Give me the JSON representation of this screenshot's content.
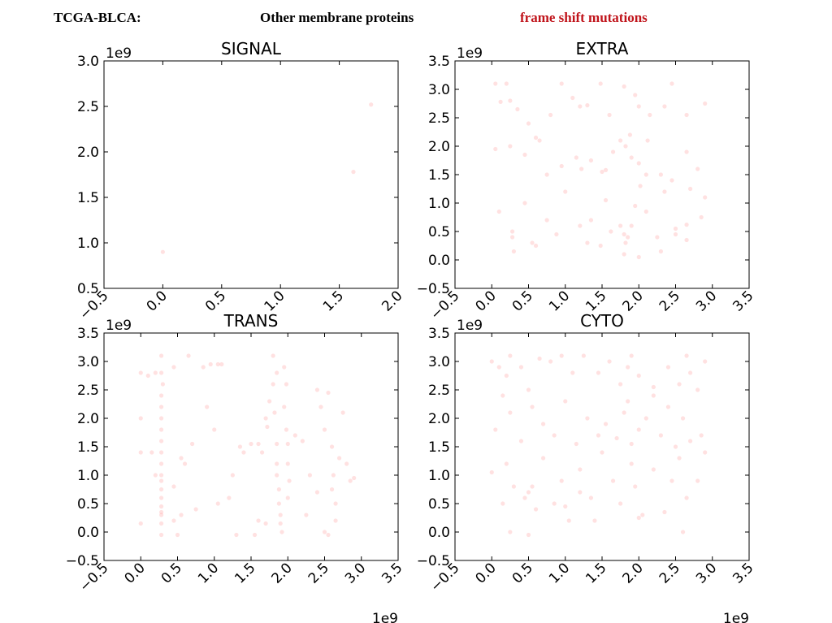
{
  "header": {
    "dataset": "TCGA-BLCA:",
    "category": "Other membrane proteins",
    "mutation_type": "frame shift mutations",
    "mutation_color": "#c0141b"
  },
  "point_color": "#ff9a9a",
  "chart_data": [
    {
      "type": "scatter",
      "title": "SIGNAL",
      "x_offset_label": "",
      "y_offset_label": "1e9",
      "xlim": [
        -0.5,
        2.0
      ],
      "ylim": [
        0.5,
        3.0
      ],
      "xticks": [
        "−0.5",
        "0.0",
        "0.5",
        "1.0",
        "1.5",
        "2.0"
      ],
      "yticks": [
        "0.5",
        "1.0",
        "1.5",
        "2.0",
        "2.5",
        "3.0"
      ],
      "points": [
        [
          0.0,
          0.9
        ],
        [
          1.62,
          1.78
        ],
        [
          1.77,
          2.52
        ]
      ]
    },
    {
      "type": "scatter",
      "title": "EXTRA",
      "x_offset_label": "",
      "y_offset_label": "1e9",
      "xlim": [
        -0.5,
        3.5
      ],
      "ylim": [
        -0.5,
        3.5
      ],
      "xticks": [
        "−0.5",
        "0.0",
        "0.5",
        "1.0",
        "1.5",
        "2.0",
        "2.5",
        "3.0",
        "3.5"
      ],
      "yticks": [
        "−0.5",
        "0.0",
        "0.5",
        "1.0",
        "1.5",
        "2.0",
        "2.5",
        "3.0",
        "3.5"
      ],
      "points": [
        [
          0.05,
          3.1
        ],
        [
          0.2,
          3.1
        ],
        [
          0.25,
          2.8
        ],
        [
          0.12,
          2.78
        ],
        [
          0.35,
          2.65
        ],
        [
          0.5,
          2.4
        ],
        [
          0.65,
          2.1
        ],
        [
          0.8,
          2.55
        ],
        [
          0.95,
          3.1
        ],
        [
          1.1,
          2.85
        ],
        [
          1.2,
          2.7
        ],
        [
          1.3,
          2.72
        ],
        [
          1.48,
          3.1
        ],
        [
          1.6,
          2.55
        ],
        [
          1.8,
          3.05
        ],
        [
          1.95,
          2.9
        ],
        [
          2.0,
          2.7
        ],
        [
          2.15,
          2.55
        ],
        [
          2.35,
          2.7
        ],
        [
          2.45,
          3.1
        ],
        [
          2.65,
          2.55
        ],
        [
          2.9,
          2.75
        ],
        [
          0.05,
          1.95
        ],
        [
          0.25,
          2.0
        ],
        [
          0.45,
          1.85
        ],
        [
          0.6,
          2.15
        ],
        [
          0.75,
          1.5
        ],
        [
          0.95,
          1.65
        ],
        [
          1.15,
          1.8
        ],
        [
          1.22,
          1.6
        ],
        [
          1.35,
          1.75
        ],
        [
          1.5,
          1.55
        ],
        [
          1.65,
          1.9
        ],
        [
          1.75,
          2.1
        ],
        [
          1.82,
          2.0
        ],
        [
          1.9,
          1.8
        ],
        [
          2.0,
          1.7
        ],
        [
          2.1,
          1.5
        ],
        [
          2.3,
          1.5
        ],
        [
          2.45,
          1.4
        ],
        [
          2.65,
          1.9
        ],
        [
          2.8,
          1.6
        ],
        [
          0.1,
          0.85
        ],
        [
          0.28,
          0.5
        ],
        [
          0.28,
          0.4
        ],
        [
          0.45,
          1.0
        ],
        [
          0.55,
          0.3
        ],
        [
          0.75,
          0.7
        ],
        [
          0.88,
          0.45
        ],
        [
          1.0,
          1.2
        ],
        [
          1.2,
          0.6
        ],
        [
          1.35,
          0.7
        ],
        [
          1.48,
          0.25
        ],
        [
          1.55,
          1.05
        ],
        [
          1.62,
          0.5
        ],
        [
          1.75,
          0.6
        ],
        [
          1.8,
          0.45
        ],
        [
          1.82,
          0.3
        ],
        [
          1.85,
          0.4
        ],
        [
          1.9,
          0.6
        ],
        [
          1.95,
          0.95
        ],
        [
          2.02,
          1.3
        ],
        [
          2.1,
          0.85
        ],
        [
          2.25,
          0.4
        ],
        [
          2.35,
          1.2
        ],
        [
          2.5,
          0.55
        ],
        [
          2.65,
          0.62
        ],
        [
          2.7,
          1.25
        ],
        [
          2.85,
          0.75
        ],
        [
          2.9,
          1.1
        ],
        [
          0.3,
          0.15
        ],
        [
          0.6,
          0.25
        ],
        [
          1.3,
          0.3
        ],
        [
          1.8,
          0.1
        ],
        [
          2.0,
          0.05
        ],
        [
          2.3,
          0.15
        ],
        [
          2.5,
          0.45
        ],
        [
          2.65,
          0.35
        ],
        [
          1.55,
          1.58
        ],
        [
          1.88,
          2.2
        ],
        [
          2.12,
          2.1
        ]
      ]
    },
    {
      "type": "scatter",
      "title": "TRANS",
      "x_offset_label": "1e9",
      "y_offset_label": "1e9",
      "xlim": [
        -0.5,
        3.5
      ],
      "ylim": [
        -0.5,
        3.5
      ],
      "xticks": [
        "−0.5",
        "0.0",
        "0.5",
        "1.0",
        "1.5",
        "2.0",
        "2.5",
        "3.0",
        "3.5"
      ],
      "yticks": [
        "−0.5",
        "0.0",
        "0.5",
        "1.0",
        "1.5",
        "2.0",
        "2.5",
        "3.0",
        "3.5"
      ],
      "points": [
        [
          0.0,
          2.8
        ],
        [
          0.1,
          2.75
        ],
        [
          0.2,
          2.8
        ],
        [
          0.28,
          2.8
        ],
        [
          0.28,
          3.1
        ],
        [
          0.3,
          2.6
        ],
        [
          0.28,
          2.4
        ],
        [
          0.28,
          2.2
        ],
        [
          0.28,
          2.0
        ],
        [
          0.28,
          1.8
        ],
        [
          0.28,
          1.6
        ],
        [
          0.28,
          1.4
        ],
        [
          0.28,
          1.2
        ],
        [
          0.28,
          1.0
        ],
        [
          0.28,
          0.9
        ],
        [
          0.28,
          0.75
        ],
        [
          0.28,
          0.6
        ],
        [
          0.28,
          0.45
        ],
        [
          0.28,
          0.35
        ],
        [
          0.28,
          0.3
        ],
        [
          0.28,
          0.15
        ],
        [
          0.28,
          -0.05
        ],
        [
          0.0,
          2.0
        ],
        [
          0.0,
          1.4
        ],
        [
          0.0,
          0.15
        ],
        [
          0.15,
          1.4
        ],
        [
          0.2,
          1.0
        ],
        [
          0.45,
          2.9
        ],
        [
          0.45,
          0.8
        ],
        [
          0.45,
          0.2
        ],
        [
          0.5,
          -0.05
        ],
        [
          0.55,
          1.3
        ],
        [
          0.6,
          1.2
        ],
        [
          0.65,
          3.1
        ],
        [
          0.7,
          1.55
        ],
        [
          0.75,
          0.4
        ],
        [
          0.55,
          0.3
        ],
        [
          0.85,
          2.9
        ],
        [
          0.95,
          2.95
        ],
        [
          1.05,
          2.95
        ],
        [
          1.1,
          2.95
        ],
        [
          0.9,
          2.2
        ],
        [
          1.0,
          1.8
        ],
        [
          1.05,
          0.5
        ],
        [
          1.2,
          0.6
        ],
        [
          1.25,
          1.0
        ],
        [
          1.3,
          -0.05
        ],
        [
          1.35,
          1.5
        ],
        [
          1.4,
          1.4
        ],
        [
          1.5,
          1.55
        ],
        [
          1.6,
          1.55
        ],
        [
          1.65,
          1.4
        ],
        [
          1.7,
          2.0
        ],
        [
          1.72,
          1.85
        ],
        [
          1.75,
          2.3
        ],
        [
          1.8,
          2.6
        ],
        [
          1.82,
          2.1
        ],
        [
          1.85,
          1.55
        ],
        [
          1.85,
          1.2
        ],
        [
          1.85,
          1.0
        ],
        [
          1.88,
          0.75
        ],
        [
          1.88,
          0.5
        ],
        [
          1.9,
          0.3
        ],
        [
          1.9,
          0.15
        ],
        [
          1.92,
          0.0
        ],
        [
          1.95,
          2.9
        ],
        [
          1.95,
          2.2
        ],
        [
          1.98,
          1.8
        ],
        [
          2.0,
          1.55
        ],
        [
          2.0,
          1.2
        ],
        [
          2.02,
          0.9
        ],
        [
          2.0,
          0.6
        ],
        [
          1.6,
          0.2
        ],
        [
          1.7,
          0.15
        ],
        [
          1.55,
          -0.05
        ],
        [
          1.8,
          3.1
        ],
        [
          1.85,
          2.8
        ],
        [
          1.98,
          2.6
        ],
        [
          2.1,
          1.7
        ],
        [
          2.2,
          1.6
        ],
        [
          2.25,
          0.3
        ],
        [
          2.3,
          1.0
        ],
        [
          2.4,
          2.5
        ],
        [
          2.45,
          2.2
        ],
        [
          2.5,
          1.8
        ],
        [
          2.55,
          2.45
        ],
        [
          2.6,
          1.5
        ],
        [
          2.62,
          1.0
        ],
        [
          2.65,
          0.5
        ],
        [
          2.65,
          0.2
        ],
        [
          2.7,
          1.3
        ],
        [
          2.75,
          2.1
        ],
        [
          2.8,
          1.2
        ],
        [
          2.85,
          0.9
        ],
        [
          2.9,
          0.95
        ],
        [
          2.55,
          -0.05
        ],
        [
          2.5,
          0.0
        ],
        [
          2.4,
          0.7
        ],
        [
          2.6,
          0.75
        ]
      ]
    },
    {
      "type": "scatter",
      "title": "CYTO",
      "x_offset_label": "1e9",
      "y_offset_label": "1e9",
      "xlim": [
        -0.5,
        3.5
      ],
      "ylim": [
        -0.5,
        3.5
      ],
      "xticks": [
        "−0.5",
        "0.0",
        "0.5",
        "1.0",
        "1.5",
        "2.0",
        "2.5",
        "3.0",
        "3.5"
      ],
      "yticks": [
        "−0.5",
        "0.0",
        "0.5",
        "1.0",
        "1.5",
        "2.0",
        "2.5",
        "3.0",
        "3.5"
      ],
      "points": [
        [
          0.0,
          3.0
        ],
        [
          0.1,
          2.9
        ],
        [
          0.2,
          2.75
        ],
        [
          0.15,
          2.4
        ],
        [
          0.25,
          3.1
        ],
        [
          0.4,
          2.9
        ],
        [
          0.5,
          2.5
        ],
        [
          0.65,
          3.05
        ],
        [
          0.8,
          3.0
        ],
        [
          0.95,
          3.1
        ],
        [
          1.1,
          2.8
        ],
        [
          1.25,
          3.1
        ],
        [
          1.45,
          2.8
        ],
        [
          1.6,
          3.0
        ],
        [
          1.75,
          2.6
        ],
        [
          1.85,
          2.9
        ],
        [
          1.85,
          2.3
        ],
        [
          1.9,
          3.1
        ],
        [
          2.0,
          2.75
        ],
        [
          2.2,
          2.4
        ],
        [
          2.4,
          2.9
        ],
        [
          2.55,
          2.6
        ],
        [
          2.65,
          3.1
        ],
        [
          2.7,
          2.8
        ],
        [
          2.8,
          2.5
        ],
        [
          2.9,
          3.0
        ],
        [
          0.05,
          1.8
        ],
        [
          0.25,
          2.1
        ],
        [
          0.4,
          1.6
        ],
        [
          0.55,
          2.2
        ],
        [
          0.7,
          1.9
        ],
        [
          0.85,
          1.7
        ],
        [
          1.0,
          2.3
        ],
        [
          1.15,
          1.55
        ],
        [
          1.3,
          2.0
        ],
        [
          1.45,
          1.7
        ],
        [
          1.55,
          1.9
        ],
        [
          1.7,
          1.65
        ],
        [
          1.8,
          2.1
        ],
        [
          1.9,
          1.55
        ],
        [
          2.0,
          1.8
        ],
        [
          2.1,
          2.0
        ],
        [
          2.3,
          1.7
        ],
        [
          2.4,
          2.2
        ],
        [
          2.5,
          1.5
        ],
        [
          2.6,
          2.0
        ],
        [
          2.7,
          1.6
        ],
        [
          2.85,
          1.7
        ],
        [
          0.0,
          1.05
        ],
        [
          0.15,
          0.5
        ],
        [
          0.2,
          1.2
        ],
        [
          0.3,
          0.8
        ],
        [
          0.45,
          0.6
        ],
        [
          0.5,
          0.7
        ],
        [
          0.55,
          0.8
        ],
        [
          0.6,
          0.4
        ],
        [
          0.7,
          1.3
        ],
        [
          0.85,
          0.5
        ],
        [
          0.95,
          0.9
        ],
        [
          1.05,
          0.2
        ],
        [
          1.2,
          1.1
        ],
        [
          1.35,
          0.6
        ],
        [
          1.5,
          1.4
        ],
        [
          1.65,
          0.9
        ],
        [
          1.75,
          0.5
        ],
        [
          1.9,
          1.2
        ],
        [
          1.95,
          0.8
        ],
        [
          2.05,
          0.3
        ],
        [
          2.2,
          1.1
        ],
        [
          2.35,
          0.35
        ],
        [
          2.45,
          0.9
        ],
        [
          2.55,
          1.3
        ],
        [
          2.65,
          0.6
        ],
        [
          2.8,
          0.9
        ],
        [
          2.9,
          1.4
        ],
        [
          0.25,
          0.0
        ],
        [
          0.5,
          -0.05
        ],
        [
          1.0,
          0.45
        ],
        [
          1.4,
          0.2
        ],
        [
          2.0,
          0.25
        ],
        [
          2.6,
          0.0
        ],
        [
          1.2,
          0.7
        ],
        [
          2.2,
          2.55
        ]
      ]
    }
  ]
}
